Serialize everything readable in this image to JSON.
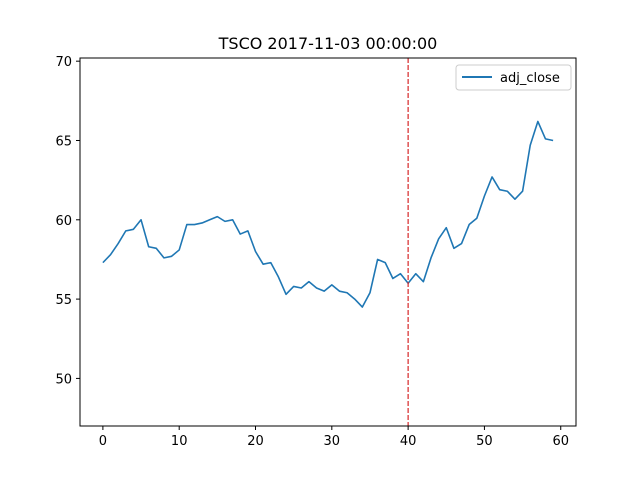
{
  "chart_data": {
    "type": "line",
    "title": "TSCO 2017-11-03 00:00:00",
    "xlabel": "",
    "ylabel": "",
    "xlim": [
      -3,
      62
    ],
    "ylim": [
      47,
      70.2
    ],
    "xticks": [
      0,
      10,
      20,
      30,
      40,
      50,
      60
    ],
    "yticks": [
      50,
      55,
      60,
      65,
      70
    ],
    "grid": false,
    "legend": {
      "placement": "top-right",
      "entries": [
        "adj_close"
      ]
    },
    "series": [
      {
        "name": "adj_close",
        "color": "#1f77b4",
        "x": [
          0,
          1,
          2,
          3,
          4,
          5,
          6,
          7,
          8,
          9,
          10,
          11,
          12,
          13,
          14,
          15,
          16,
          17,
          18,
          19,
          20,
          21,
          22,
          23,
          24,
          25,
          26,
          27,
          28,
          29,
          30,
          31,
          32,
          33,
          34,
          35,
          36,
          37,
          38,
          39,
          40,
          41,
          42,
          43,
          44,
          45,
          46,
          47,
          48,
          49,
          50,
          51,
          52,
          53,
          54,
          55,
          56,
          57,
          58,
          59
        ],
        "values": [
          57.3,
          57.8,
          58.5,
          59.3,
          59.4,
          60.0,
          58.3,
          58.2,
          57.6,
          57.7,
          58.1,
          59.7,
          59.7,
          59.8,
          60.0,
          60.2,
          59.9,
          60.0,
          59.1,
          59.3,
          58.0,
          57.2,
          57.3,
          56.4,
          55.3,
          55.8,
          55.7,
          56.1,
          55.7,
          55.5,
          55.9,
          55.5,
          55.4,
          55.0,
          54.5,
          55.4,
          57.5,
          57.3,
          56.3,
          56.6,
          56.0,
          56.6,
          56.1,
          57.6,
          58.8,
          59.5,
          58.2,
          58.5,
          59.7,
          60.1,
          61.5,
          62.7,
          61.9,
          61.8,
          61.3,
          61.8,
          64.7,
          66.2,
          65.1,
          65.0
        ]
      }
    ],
    "annotations": [
      {
        "type": "vline",
        "x": 40,
        "color": "#d62728",
        "style": "dashed"
      }
    ]
  }
}
